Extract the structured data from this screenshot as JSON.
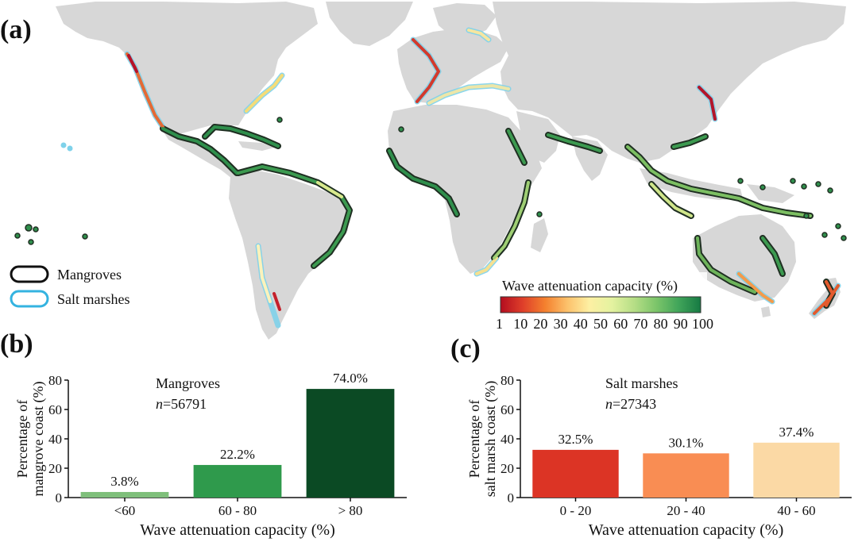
{
  "panels": {
    "a": {
      "label": "(a)",
      "legend": {
        "mangroves": "Mangroves",
        "salt_marshes": "Salt marshes",
        "mangroves_color": "#111111",
        "salt_marshes_color": "#34b3e0"
      },
      "colorbar": {
        "title": "Wave attenuation capacity (%)",
        "ticks": [
          "1",
          "10",
          "20",
          "30",
          "40",
          "50",
          "60",
          "70",
          "80",
          "90",
          "100"
        ],
        "colors": [
          "#b30d1f",
          "#df3f2a",
          "#f4802e",
          "#fcc16b",
          "#fdf0a3",
          "#e4f2a0",
          "#b6de86",
          "#7cc56a",
          "#41a55a",
          "#167a43"
        ]
      },
      "map_colors": {
        "land": "#d7d7d7",
        "coast_high": "#2e8a4a",
        "coast_low": "#c62828",
        "coast_mid": "#f6e08a"
      }
    },
    "b": {
      "label": "(b)"
    },
    "c": {
      "label": "(c)"
    }
  },
  "chart_data": [
    {
      "type": "bar",
      "panel": "b",
      "annotation_title": "Mangroves",
      "annotation_n_symbol": "n",
      "annotation_n_value": "=56791",
      "categories": [
        "<60",
        "60 - 80",
        "> 80"
      ],
      "values": [
        3.8,
        22.2,
        74.0
      ],
      "value_labels": [
        "3.8%",
        "22.2%",
        "74.0%"
      ],
      "colors": [
        "#7fbf7b",
        "#2f9a4c",
        "#0b4a24"
      ],
      "xlabel": "Wave attenuation capacity (%)",
      "ylabel_lines": [
        "Percentage of",
        "mangrove coast (%)"
      ],
      "ylim": [
        0,
        80
      ],
      "yticks": [
        0,
        20,
        40,
        60,
        80
      ],
      "grid": false
    },
    {
      "type": "bar",
      "panel": "c",
      "annotation_title": "Salt marshes",
      "annotation_n_symbol": "n",
      "annotation_n_value": "=27343",
      "categories": [
        "0 - 20",
        "20 - 40",
        "40 - 60"
      ],
      "values": [
        32.5,
        30.1,
        37.4
      ],
      "value_labels": [
        "32.5%",
        "30.1%",
        "37.4%"
      ],
      "colors": [
        "#dc3425",
        "#f98d53",
        "#fbd9a5"
      ],
      "xlabel": "Wave attenuation capacity (%)",
      "ylabel_lines": [
        "Percentage of",
        "salt marsh coast (%)"
      ],
      "ylim": [
        0,
        80
      ],
      "yticks": [
        0,
        20,
        40,
        60,
        80
      ],
      "grid": false
    }
  ]
}
